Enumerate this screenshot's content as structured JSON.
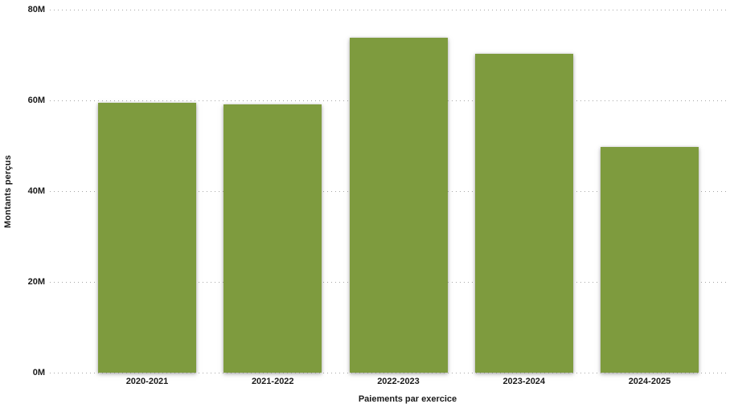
{
  "chart_data": {
    "type": "bar",
    "title": "",
    "categories": [
      "2020-2021",
      "2021-2022",
      "2022-2023",
      "2023-2024",
      "2024-2025"
    ],
    "values": [
      59.4,
      59.2,
      73.8,
      70.3,
      49.8
    ],
    "unit": "M",
    "xlabel": "Paiements par exercice",
    "ylabel": "Montants perçus",
    "ylim": [
      0,
      80
    ],
    "yticks": [
      {
        "value": 0,
        "label": "0M"
      },
      {
        "value": 20,
        "label": "20M"
      },
      {
        "value": 40,
        "label": "40M"
      },
      {
        "value": 60,
        "label": "60M"
      },
      {
        "value": 80,
        "label": "80M"
      }
    ],
    "grid": "horizontal-dotted",
    "legend_position": "none",
    "bar_color": "#7E9B3E",
    "text_color": "#1a1a1a",
    "background_color": "#ffffff"
  }
}
